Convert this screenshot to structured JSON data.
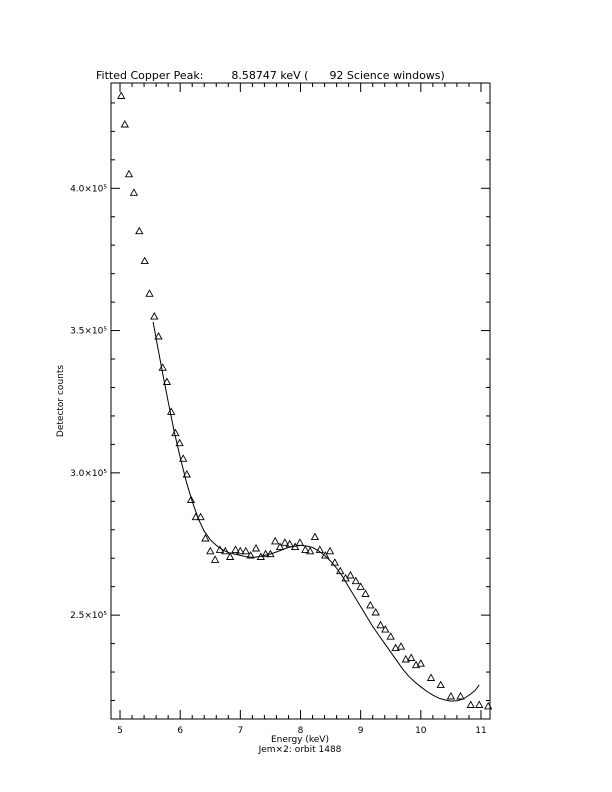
{
  "chart_data": {
    "type": "scatter",
    "title": "Fitted Copper Peak:        8.58747 keV (      92 Science windows)",
    "xlabel": "Energy (keV)",
    "ylabel": "Detector counts",
    "footer": "Jem×2: orbit 1488",
    "xlim": [
      4.85,
      11.15
    ],
    "ylim": [
      213500,
      437000
    ],
    "xticks": [
      5,
      6,
      7,
      8,
      9,
      10,
      11
    ],
    "xtick_labels": [
      "5",
      "6",
      "7",
      "8",
      "9",
      "10",
      "11"
    ],
    "yticks": [
      250000,
      300000,
      350000,
      400000
    ],
    "ytick_labels": [
      "2.5×10⁵",
      "3.0×10⁵",
      "3.5×10⁵",
      "4.0×10⁵"
    ],
    "grid": false,
    "marker": "triangle",
    "series": [
      {
        "kind": "points",
        "x": [
          5.02,
          5.08,
          5.15,
          5.23,
          5.32,
          5.41,
          5.49,
          5.57,
          5.64,
          5.71,
          5.78,
          5.85,
          5.92,
          5.99,
          6.05,
          6.11,
          6.18,
          6.26,
          6.34,
          6.42,
          6.5,
          6.58,
          6.66,
          6.75,
          6.83,
          6.92,
          7.0,
          7.09,
          7.17,
          7.26,
          7.34,
          7.42,
          7.5,
          7.58,
          7.66,
          7.74,
          7.82,
          7.91,
          7.99,
          8.08,
          8.16,
          8.24,
          8.32,
          8.41,
          8.49,
          8.57,
          8.66,
          8.75,
          8.83,
          8.92,
          9.0,
          9.08,
          9.16,
          9.25,
          9.33,
          9.41,
          9.5,
          9.58,
          9.67,
          9.75,
          9.84,
          9.92,
          10.0,
          10.17,
          10.33,
          10.5,
          10.66,
          10.83,
          10.97,
          11.12
        ],
        "y": [
          432500,
          422500,
          405000,
          398500,
          385000,
          374500,
          363000,
          355000,
          348000,
          337000,
          332000,
          321500,
          314000,
          310500,
          305000,
          299500,
          290500,
          284500,
          284500,
          277000,
          272500,
          269500,
          273000,
          272500,
          270500,
          273000,
          272500,
          272500,
          271000,
          273500,
          270500,
          271500,
          271500,
          276000,
          274000,
          275500,
          275000,
          274000,
          275500,
          273000,
          272500,
          277500,
          273000,
          271000,
          272500,
          268500,
          265500,
          263000,
          264000,
          262000,
          260000,
          257500,
          253500,
          251000,
          246500,
          245000,
          242500,
          238500,
          239000,
          234500,
          235000,
          232500,
          233000,
          228000,
          225500,
          221500,
          221500,
          218500,
          218500,
          218000
        ]
      },
      {
        "kind": "fit",
        "x": [
          5.55,
          5.62,
          5.7,
          5.8,
          5.9,
          6.0,
          6.1,
          6.2,
          6.3,
          6.4,
          6.5,
          6.6,
          6.7,
          6.8,
          6.9,
          7.0,
          7.1,
          7.2,
          7.3,
          7.4,
          7.5,
          7.6,
          7.7,
          7.8,
          7.9,
          8.0,
          8.1,
          8.2,
          8.3,
          8.4,
          8.5,
          8.6,
          8.7,
          8.8,
          8.9,
          9.0,
          9.1,
          9.2,
          9.3,
          9.4,
          9.5,
          9.6,
          9.7,
          9.8,
          9.9,
          10.0,
          10.1,
          10.2,
          10.3,
          10.4,
          10.5,
          10.6,
          10.7,
          10.8,
          10.9,
          10.97
        ],
        "y": [
          353000,
          345000,
          336000,
          325000,
          314500,
          305500,
          297000,
          290000,
          284000,
          279500,
          276500,
          274500,
          273000,
          272000,
          271500,
          271000,
          270500,
          270300,
          270500,
          271000,
          271500,
          272200,
          273000,
          273800,
          274200,
          274500,
          274300,
          273800,
          272600,
          271000,
          269000,
          266500,
          263500,
          260000,
          256500,
          253000,
          249500,
          246000,
          243000,
          240000,
          237000,
          234000,
          231000,
          228500,
          226500,
          224800,
          223200,
          221900,
          220800,
          220200,
          219800,
          219900,
          220500,
          221800,
          223500,
          225500
        ]
      }
    ]
  }
}
